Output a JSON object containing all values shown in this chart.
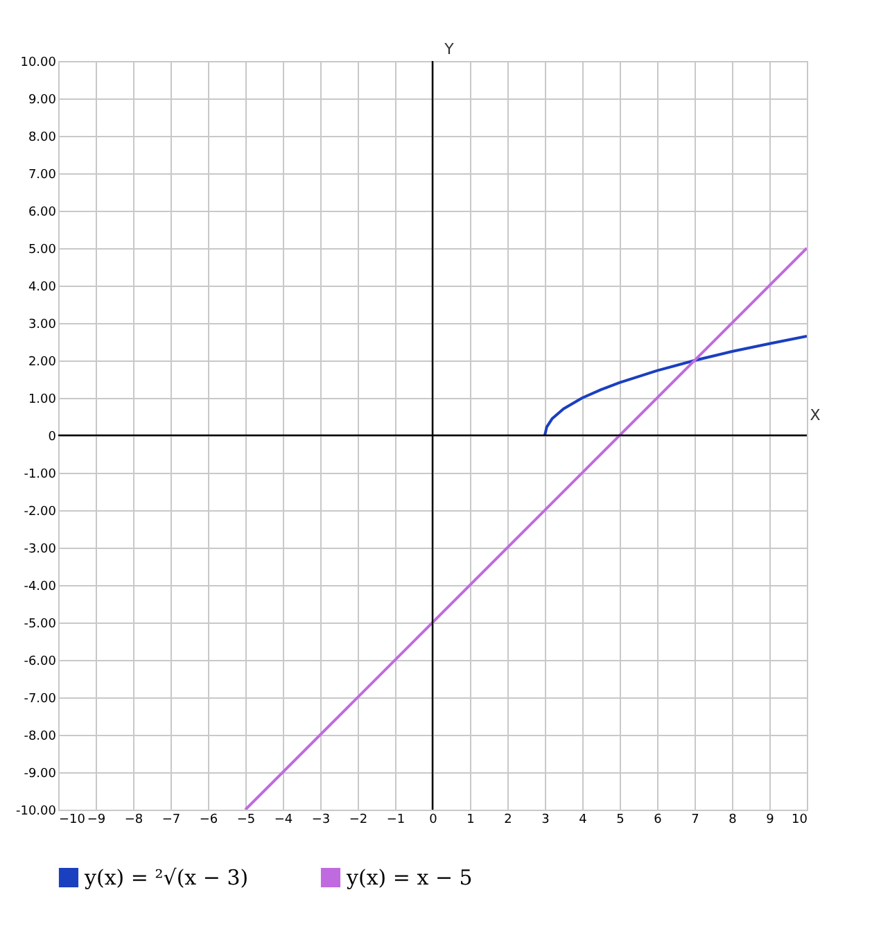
{
  "chart_data": {
    "type": "line",
    "xlabel": "X",
    "ylabel": "Y",
    "xlim": [
      -10,
      10
    ],
    "ylim": [
      -10,
      10
    ],
    "xticks": [
      -10,
      -9,
      -8,
      -7,
      -6,
      -5,
      -4,
      -3,
      -2,
      -1,
      0,
      1,
      2,
      3,
      4,
      5,
      6,
      7,
      8,
      9,
      10
    ],
    "yticks": [
      {
        "value": -10,
        "label": "-10.00"
      },
      {
        "value": -9,
        "label": "-9.00"
      },
      {
        "value": -8,
        "label": "-8.00"
      },
      {
        "value": -7,
        "label": "-7.00"
      },
      {
        "value": -6,
        "label": "-6.00"
      },
      {
        "value": -5,
        "label": "-5.00"
      },
      {
        "value": -4,
        "label": "-4.00"
      },
      {
        "value": -3,
        "label": "-3.00"
      },
      {
        "value": -2,
        "label": "-2.00"
      },
      {
        "value": -1,
        "label": "-1.00"
      },
      0,
      {
        "value": 1,
        "label": "1.00"
      },
      {
        "value": 2,
        "label": "2.00"
      },
      {
        "value": 3,
        "label": "3.00"
      },
      {
        "value": 4,
        "label": "4.00"
      },
      {
        "value": 5,
        "label": "5.00"
      },
      {
        "value": 6,
        "label": "6.00"
      },
      {
        "value": 7,
        "label": "7.00"
      },
      {
        "value": 8,
        "label": "8.00"
      },
      {
        "value": 9,
        "label": "9.00"
      },
      {
        "value": 10,
        "label": "10.00"
      }
    ],
    "grid": true,
    "legend": "bottom",
    "marker": "none",
    "line_style": "solid",
    "series": [
      {
        "name": "y(x) = ²√(x − 3)",
        "color": "#1a3fbf",
        "x": [
          3,
          3.05,
          3.2,
          3.5,
          4,
          4.5,
          5,
          6,
          7,
          8,
          9,
          10
        ],
        "values": [
          0,
          0.22,
          0.45,
          0.71,
          1,
          1.22,
          1.41,
          1.73,
          2,
          2.24,
          2.45,
          2.65
        ]
      },
      {
        "name": "y(x) = x − 5",
        "color": "#c06ae0",
        "x": [
          -5,
          10
        ],
        "values": [
          -10,
          5
        ]
      }
    ]
  }
}
